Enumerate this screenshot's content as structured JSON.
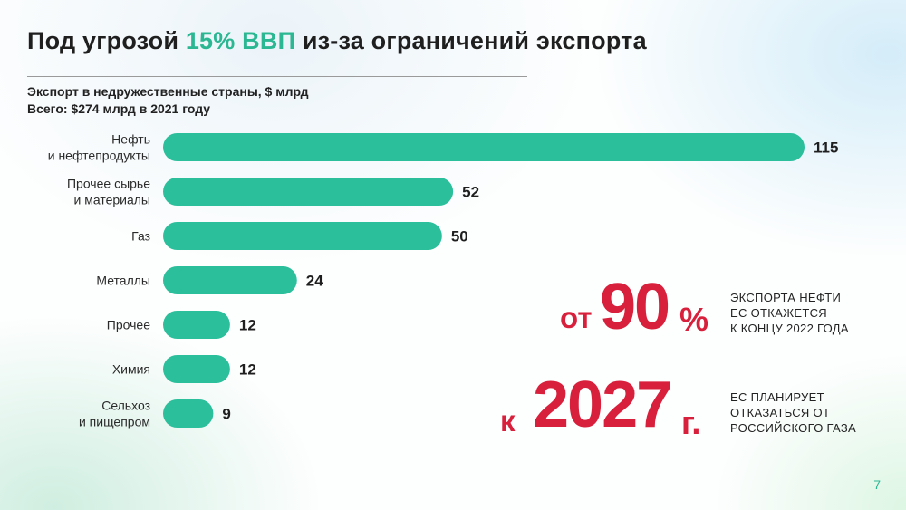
{
  "title": {
    "prefix": "Под угрозой ",
    "accent": "15% ВВП",
    "suffix": " из-за ограничений экспорта"
  },
  "subtitle": {
    "line1": "Экспорт в недружественные страны, $ млрд",
    "line2": "Всего: $274 млрд в 2021 году"
  },
  "callouts": {
    "oil": {
      "prefix": "от",
      "number": "90",
      "suffix": "%",
      "lines": [
        "ЭКСПОРТА НЕФТИ",
        "ЕС ОТКАЖЕТСЯ",
        "К КОНЦУ 2022 ГОДА"
      ]
    },
    "gas": {
      "prefix": "к",
      "number": "2027",
      "suffix": "г.",
      "lines": [
        "ЕС ПЛАНИРУЕТ",
        "ОТКАЗАТЬСЯ ОТ",
        "РОССИЙСКОГО ГАЗА"
      ]
    }
  },
  "page_number": "7",
  "colors": {
    "bar": "#2bbf9b",
    "accent": "#2bb792",
    "highlight": "#d81f3b"
  },
  "chart_data": {
    "type": "bar",
    "orientation": "horizontal",
    "title": "Экспорт в недружественные страны, $ млрд",
    "categories": [
      [
        "Нефть",
        "и нефтепродукты"
      ],
      [
        "Прочее сырье",
        "и материалы"
      ],
      [
        "Газ"
      ],
      [
        "Металлы"
      ],
      [
        "Прочее"
      ],
      [
        "Химия"
      ],
      [
        "Сельхоз",
        "и пищепром"
      ]
    ],
    "values": [
      115,
      52,
      50,
      24,
      12,
      12,
      9
    ],
    "value_labels": [
      "115",
      "52",
      "50",
      "24",
      "12",
      "12",
      "9"
    ],
    "xlim": [
      0,
      115
    ],
    "grid": false,
    "legend": "none"
  }
}
